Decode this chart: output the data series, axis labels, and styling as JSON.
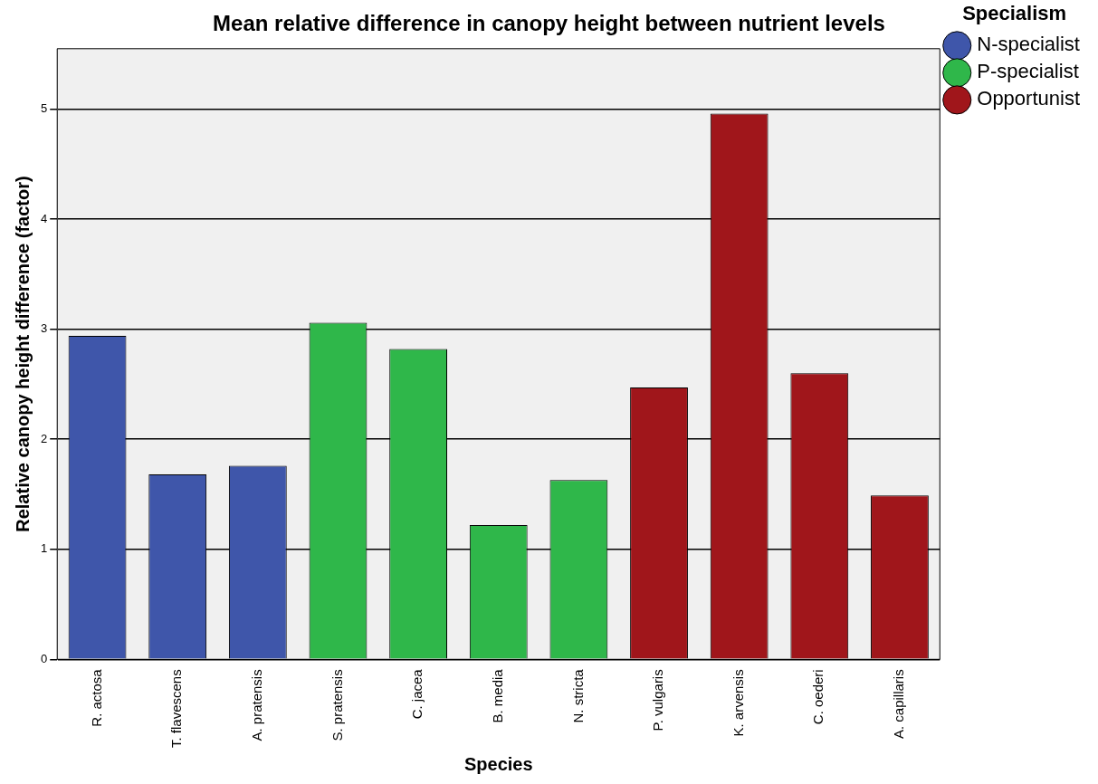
{
  "chart_data": {
    "type": "bar",
    "title": "Mean relative difference in canopy height between nutrient levels",
    "xlabel": "Species",
    "ylabel": "Relative canopy height difference (factor)",
    "legend_title": "Specialism",
    "categories": [
      "R. actosa",
      "T. flavescens",
      "A. pratensis",
      "S. pratensis",
      "C. jacea",
      "B. media",
      "N. stricta",
      "P. vulgaris",
      "K. arvensis",
      "C. oederi",
      "A. capillaris"
    ],
    "series": [
      {
        "name": "N-specialist",
        "color": "#3f56aa",
        "values": [
          2.94,
          1.68,
          1.76,
          null,
          null,
          null,
          null,
          null,
          null,
          null,
          null
        ]
      },
      {
        "name": "P-specialist",
        "color": "#2fb74a",
        "values": [
          null,
          null,
          null,
          3.06,
          2.82,
          1.22,
          1.63,
          null,
          null,
          null,
          null
        ]
      },
      {
        "name": "Opportunist",
        "color": "#a0161b",
        "values": [
          null,
          null,
          null,
          null,
          null,
          null,
          null,
          2.47,
          4.96,
          2.6,
          1.49
        ]
      }
    ],
    "ylim": [
      0,
      5.55
    ],
    "yticks": [
      0,
      1,
      2,
      3,
      4,
      5
    ],
    "grid": "y",
    "legend": "top right"
  }
}
